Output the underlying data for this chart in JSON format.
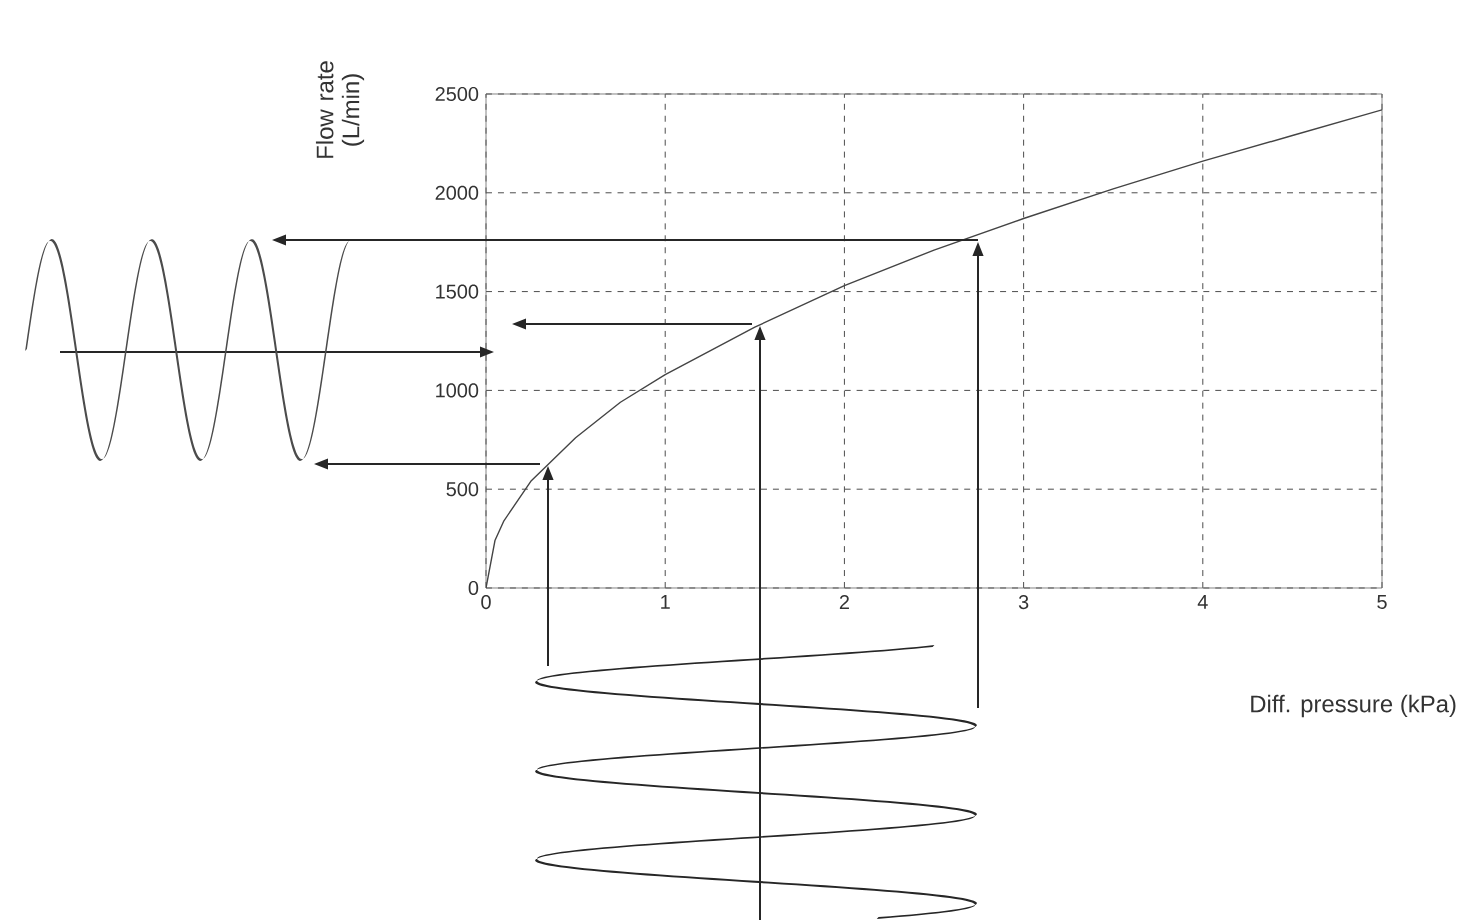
{
  "chart_data": {
    "type": "line",
    "xlabel": "Diff. pressure (kPa)",
    "ylabel": "Flow rate (L/min)",
    "x": [
      0,
      0.05,
      0.1,
      0.25,
      0.5,
      0.75,
      1,
      1.5,
      2,
      2.5,
      3,
      3.5,
      4,
      4.5,
      5
    ],
    "series": [
      {
        "color": "#444444",
        "values": [
          0,
          240,
          340,
          540,
          760,
          940,
          1080,
          1320,
          1530,
          1710,
          1870,
          2020,
          2160,
          2290,
          2420
        ]
      }
    ],
    "xlim": [
      0,
      5
    ],
    "ylim": [
      0,
      2500
    ],
    "xticks": [
      0,
      1,
      2,
      3,
      4,
      5
    ],
    "yticks": [
      0,
      500,
      1000,
      1500,
      2000,
      2500
    ],
    "grid": true,
    "marker": "none",
    "line_style": "solid"
  }
}
